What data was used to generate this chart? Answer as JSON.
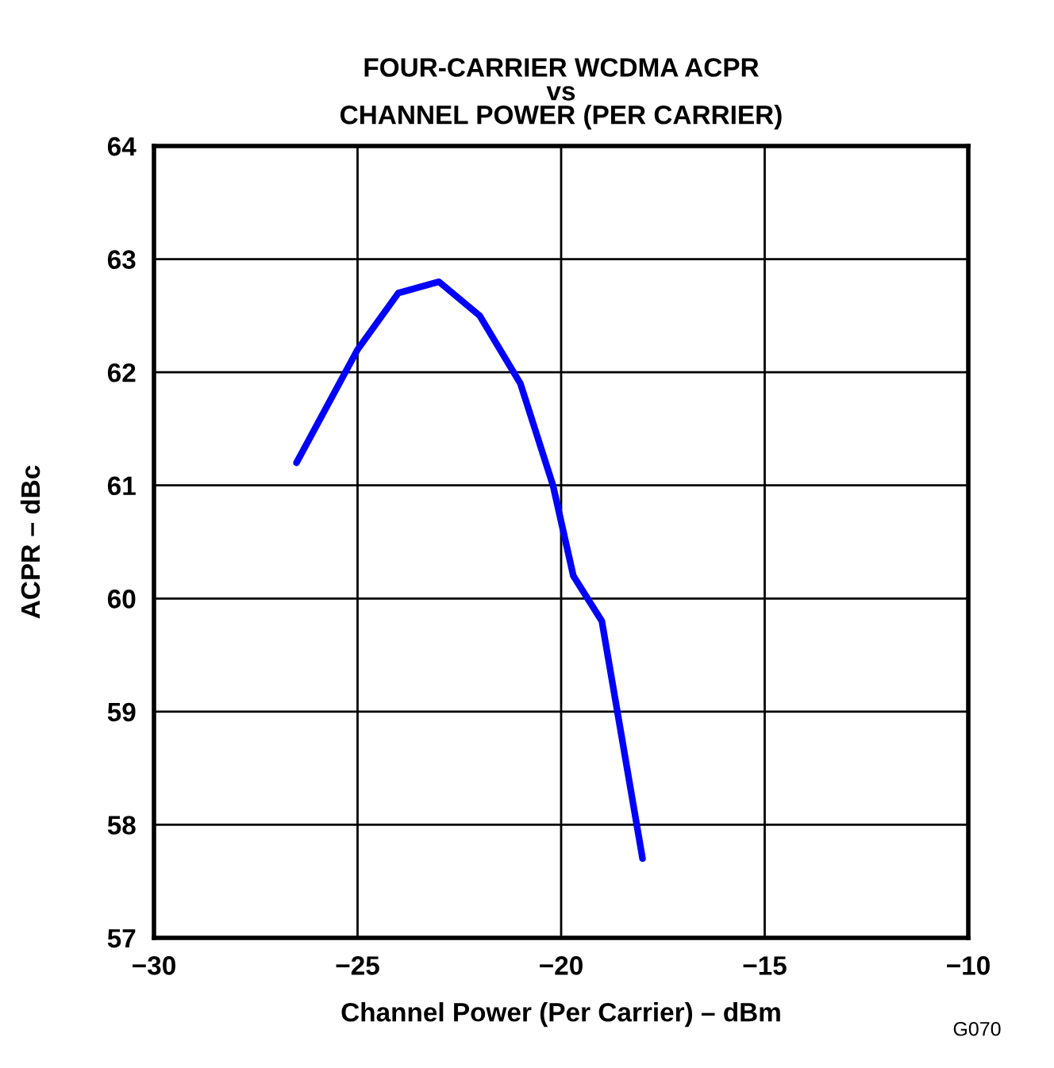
{
  "chart_data": {
    "type": "line",
    "title": "FOUR-CARRIER WCDMA ACPR\nvs\nCHANNEL POWER (PER CARRIER)",
    "xlabel": "Channel Power (Per Carrier) – dBm",
    "ylabel": "ACPR – dBc",
    "annotations": [
      "G070"
    ],
    "x": [
      -26.5,
      -25,
      -24,
      -23,
      -22,
      -21,
      -20.2,
      -19.7,
      -19,
      -18
    ],
    "series": [
      {
        "color": "#0000ff",
        "values": [
          61.2,
          62.2,
          62.7,
          62.8,
          62.5,
          61.9,
          61.0,
          60.2,
          59.8,
          57.7
        ]
      }
    ],
    "xlim": [
      -30,
      -10
    ],
    "xticks": [
      {
        "value": -30,
        "label": "−30"
      },
      {
        "value": -25,
        "label": "−25"
      },
      {
        "value": -20,
        "label": "−20"
      },
      {
        "value": -15,
        "label": "−15"
      },
      {
        "value": -10,
        "label": "−10"
      }
    ],
    "ylim": [
      57,
      64
    ],
    "yticks": [
      57,
      58,
      59,
      60,
      61,
      62,
      63,
      64
    ],
    "grid": true,
    "line_style": "solid",
    "marker": "none"
  }
}
